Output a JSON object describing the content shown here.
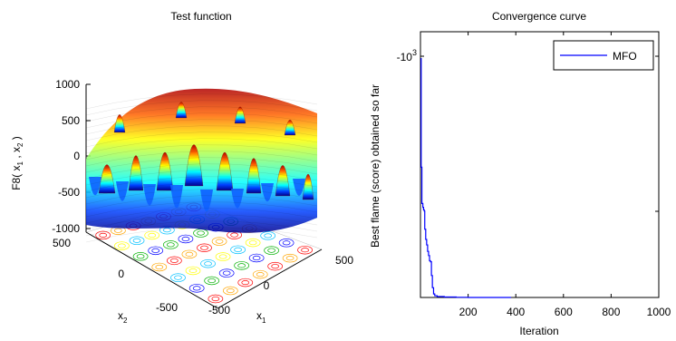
{
  "figure": {
    "left_title": "Test function",
    "right_title": "Convergence curve"
  },
  "chart_data": [
    {
      "type": "surface3d",
      "title": "Test function",
      "zlabel": "F8( x1 , x2 )",
      "xlabel": "x1",
      "ylabel": "x2",
      "z_ticks": [
        "1000",
        "500",
        "0",
        "-500",
        "-1000"
      ],
      "x1_ticks": [
        "-500",
        "0",
        "500"
      ],
      "x2_ticks": [
        "500",
        "0",
        "-500"
      ],
      "x_range": [
        -500,
        500
      ],
      "y_range": [
        -500,
        500
      ],
      "z_range": [
        -1000,
        1000
      ],
      "colormap": "jet",
      "contour_floor": true
    },
    {
      "type": "line",
      "title": "Convergence curve",
      "xlabel": "Iteration",
      "ylabel": "Best flame (score) obtained so far",
      "x_ticks": [
        "200",
        "400",
        "600",
        "800",
        "1000"
      ],
      "y_tick_label": "-10^3",
      "xlim": [
        0,
        1000
      ],
      "ylog": true,
      "series": [
        {
          "name": "MFO",
          "color": "#0000ff",
          "x": [
            1,
            3,
            6,
            10,
            13,
            16,
            18,
            22,
            26,
            30,
            34,
            38,
            42,
            46,
            50,
            55,
            60,
            70,
            100,
            150,
            200,
            300,
            380
          ],
          "y": [
            -1010,
            -1590,
            -1850,
            -1880,
            -1900,
            -1910,
            -2060,
            -2150,
            -2200,
            -2260,
            -2300,
            -2350,
            -2360,
            -2500,
            -2630,
            -2700,
            -2720,
            -2730,
            -2735,
            -2738,
            -2740,
            -2740,
            -2740
          ]
        }
      ],
      "legend_position": "top-right"
    }
  ]
}
